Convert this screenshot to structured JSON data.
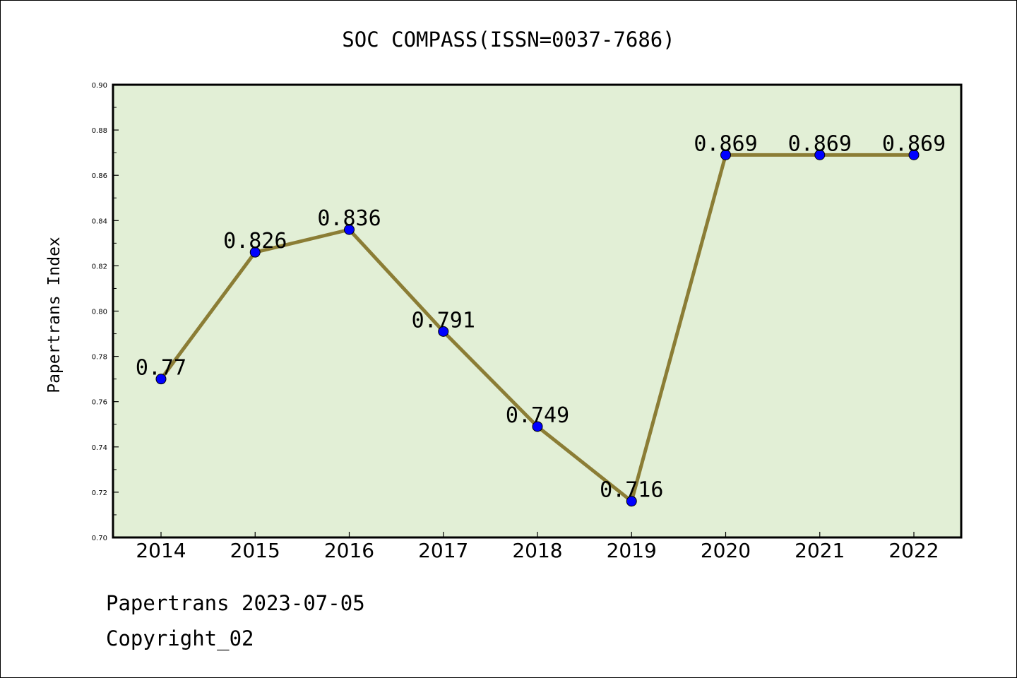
{
  "chart_data": {
    "type": "line",
    "title": "SOC COMPASS(ISSN=0037-7686)",
    "ylabel": "Papertrans Index",
    "xlabel": "",
    "categories": [
      "2014",
      "2015",
      "2016",
      "2017",
      "2018",
      "2019",
      "2020",
      "2021",
      "2022"
    ],
    "values": [
      0.77,
      0.826,
      0.836,
      0.791,
      0.749,
      0.716,
      0.869,
      0.869,
      0.869
    ],
    "data_labels": [
      "0.77",
      "0.826",
      "0.836",
      "0.791",
      "0.749",
      "0.716",
      "0.869",
      "0.869",
      "0.869"
    ],
    "ylim": [
      0.7,
      0.9
    ],
    "yticks": [
      "0.70",
      "0.72",
      "0.74",
      "0.76",
      "0.78",
      "0.80",
      "0.82",
      "0.84",
      "0.86",
      "0.88",
      "0.90"
    ],
    "grid": false,
    "colors": {
      "plot_background": "#e2efd6",
      "line": "#8b7d35",
      "marker": "#0000ff"
    }
  },
  "footer": {
    "date_line": "Papertrans 2023-07-05",
    "copyright": "Copyright_02"
  }
}
